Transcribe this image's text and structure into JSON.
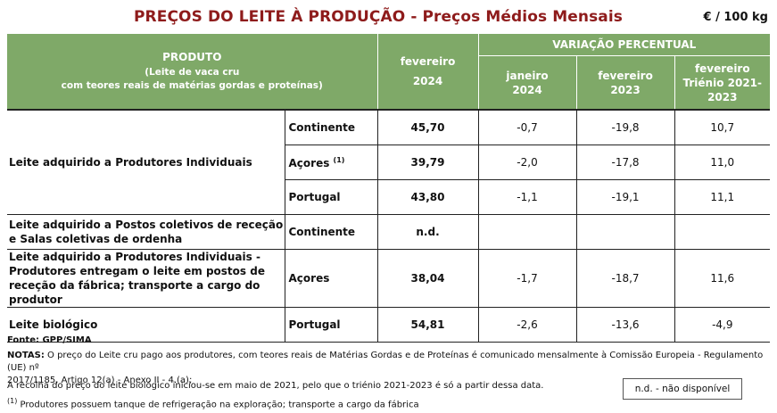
{
  "header": {
    "title": "PREÇOS DO LEITE À PRODUÇÃO - Preços Médios Mensais",
    "unit": "€ / 100 kg"
  },
  "columns": {
    "produto": "PRODUTO",
    "produto_sub1": "(Leite de vaca cru",
    "produto_sub2": "com teores reais de matérias gordas e proteínas)",
    "month_line1": "fevereiro",
    "month_line2": "2024",
    "variacao": "VARIAÇÃO PERCENTUAL",
    "var1_line1": "janeiro",
    "var1_line2": "2024",
    "var2_line1": "fevereiro",
    "var2_line2": "2023",
    "var3_line1": "fevereiro",
    "var3_line2": "Triénio 2021-",
    "var3_line3": "2023"
  },
  "rows": [
    {
      "product": "Leite adquirido a Produtores Individuais",
      "region": "Continente",
      "region_sup": "",
      "price": "45,70",
      "v1": "-0,7",
      "v2": "-19,8",
      "v3": "10,7"
    },
    {
      "product": "",
      "region": "Açores",
      "region_sup": "(1)",
      "price": "39,79",
      "v1": "-2,0",
      "v2": "-17,8",
      "v3": "11,0"
    },
    {
      "product": "",
      "region": "Portugal",
      "region_sup": "",
      "price": "43,80",
      "v1": "-1,1",
      "v2": "-19,1",
      "v3": "11,1"
    },
    {
      "product": "Leite adquirido a Postos coletivos de receção e Salas coletivas de ordenha",
      "region": "Continente",
      "region_sup": "",
      "price": "n.d.",
      "v1": "",
      "v2": "",
      "v3": ""
    },
    {
      "product": "Leite adquirido a Produtores Individuais - Produtores entregam o leite em postos de receção da fábrica; transporte a cargo do produtor",
      "region": "Açores",
      "region_sup": "",
      "price": "38,04",
      "v1": "-1,7",
      "v2": "-18,7",
      "v3": "11,6"
    },
    {
      "product": "Leite biológico",
      "region": "Portugal",
      "region_sup": "",
      "price": "54,81",
      "v1": "-2,6",
      "v2": "-13,6",
      "v3": "-4,9"
    }
  ],
  "footer": {
    "fonte": "Fonte: GPP/SIMA",
    "notas_label": "NOTAS:",
    "notas_text": " O preço do Leite cru pago aos produtores, com teores reais de Matérias Gordas e de Proteínas é comunicado mensalmente à Comissão Europeia - Regulamento (UE) nº",
    "notas_text2": "2017/1185, Artigo 12(a) - Anexo II - 4.(a);",
    "recolha": "A recolha do preço do leite biológico iniciou-se em maio de 2021, pelo que o triénio 2021-2023 é só a partir dessa data.",
    "footnote_mark": "(1)",
    "footnote": " Produtores possuem tanque de refrigeração na exploração; transporte a cargo da fábrica",
    "legend": "n.d. - não disponível"
  }
}
